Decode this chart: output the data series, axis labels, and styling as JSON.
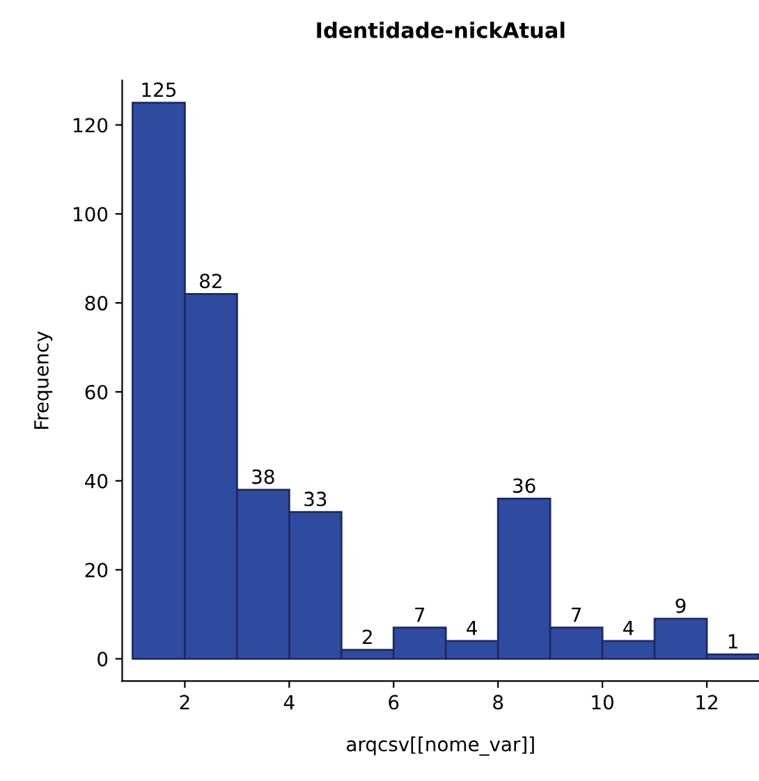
{
  "chart_data": {
    "type": "histogram",
    "title": "Identidade-nickAtual",
    "xlabel": "arqcsv[[nome_var]]",
    "ylabel": "Frequency",
    "bins": [
      1,
      2,
      3,
      4,
      5,
      6,
      7,
      8,
      9,
      10,
      11,
      12,
      13
    ],
    "values": [
      125,
      82,
      38,
      33,
      2,
      7,
      4,
      36,
      7,
      4,
      9,
      1
    ],
    "color": "#2f4b9f",
    "data_labels": true,
    "grid": false,
    "xlim": [
      0.8,
      13
    ],
    "xticks": [
      2,
      4,
      6,
      8,
      10,
      12
    ],
    "ylim": [
      -5,
      130
    ],
    "yticks": [
      0,
      20,
      40,
      60,
      80,
      100,
      120
    ]
  }
}
